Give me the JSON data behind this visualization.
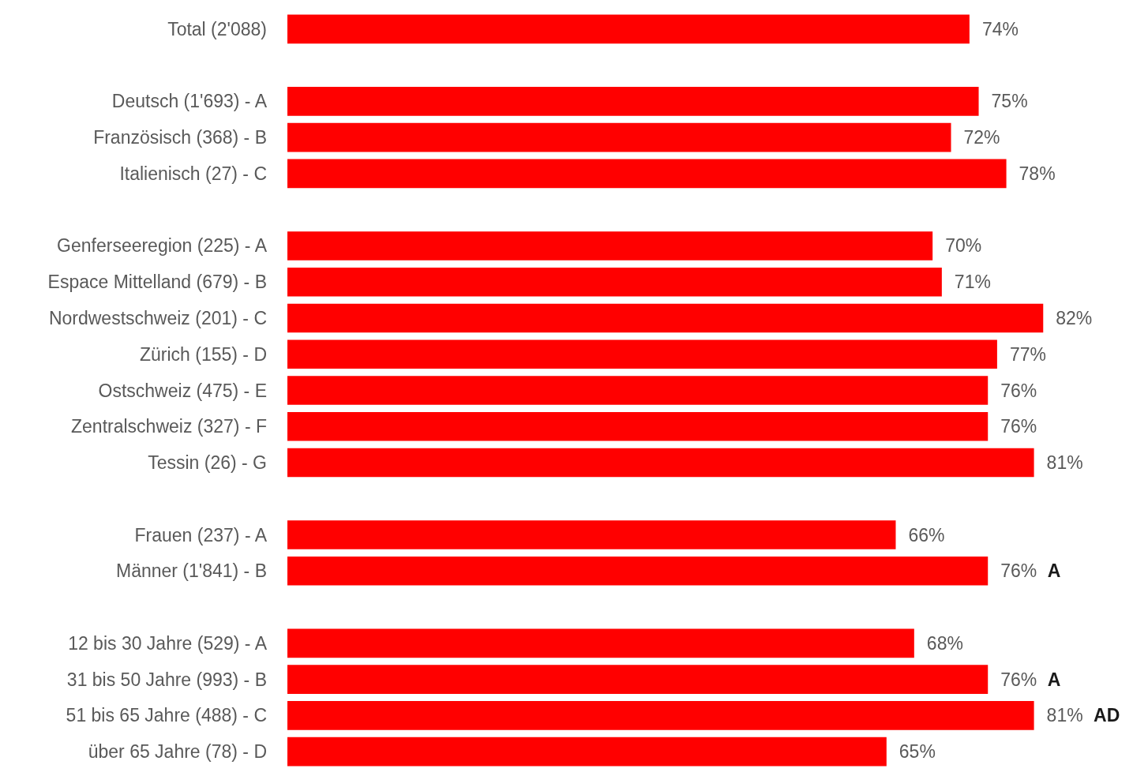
{
  "chart_data": {
    "type": "bar",
    "orientation": "horizontal",
    "color": "#ff0000",
    "categories": [
      "Total (2'088)",
      null,
      "Deutsch (1'693) - A",
      "Französisch (368) - B",
      "Italienisch (27) - C",
      null,
      "Genferseeregion (225) - A",
      "Espace Mittelland (679) - B",
      "Nordwestschweiz (201) - C",
      "Zürich (155) - D",
      "Ostschweiz (475) - E",
      "Zentralschweiz (327) - F",
      "Tessin (26) - G",
      null,
      "Frauen (237) - A",
      "Männer (1'841) - B",
      null,
      "12 bis 30 Jahre (529) - A",
      "31 bis 50 Jahre (993) - B",
      "51 bis 65 Jahre (488) - C",
      "über 65 Jahre (78) - D"
    ],
    "values": [
      74,
      null,
      75,
      72,
      78,
      null,
      70,
      71,
      82,
      77,
      76,
      76,
      81,
      null,
      66,
      76,
      null,
      68,
      76,
      81,
      65
    ],
    "value_labels": [
      "74%",
      null,
      "75%",
      "72%",
      "78%",
      null,
      "70%",
      "71%",
      "82%",
      "77%",
      "76%",
      "76%",
      "81%",
      null,
      "66%",
      "76% A",
      null,
      "68%",
      "76% A",
      "81% AD",
      "65%"
    ]
  }
}
